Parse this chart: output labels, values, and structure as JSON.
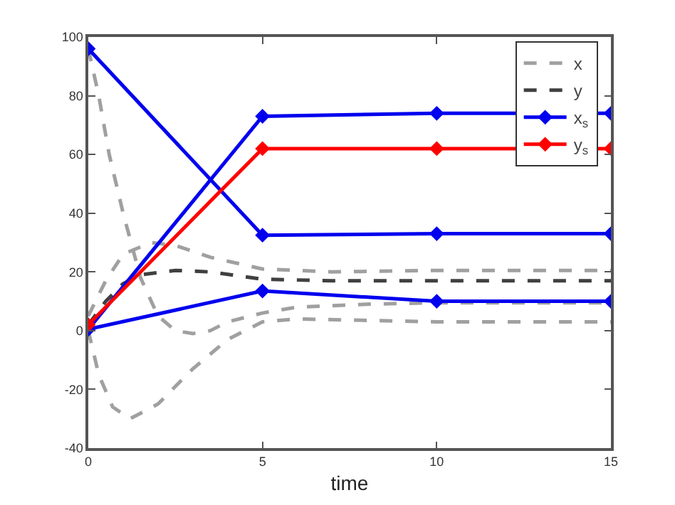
{
  "chart_data": {
    "type": "line",
    "xlabel": "time",
    "xlim": [
      0,
      15
    ],
    "xticks": [
      0,
      5,
      10,
      15
    ],
    "ylim": [
      -40,
      100
    ],
    "yticks": [
      -40,
      -20,
      0,
      20,
      40,
      60,
      80,
      100
    ],
    "grid": false,
    "legend": "top right",
    "series": [
      {
        "name": "x",
        "color": "#a0a0a0",
        "line_style": "dashed",
        "marker": "none",
        "x": [
          0,
          0.3,
          0.6,
          1,
          1.5,
          2,
          2.5,
          3,
          3.5,
          4,
          5,
          6,
          8,
          10,
          15
        ],
        "values": [
          96,
          80,
          60,
          40,
          18,
          5,
          0,
          -1,
          0,
          3,
          6,
          8,
          9,
          9.5,
          9.5
        ]
      },
      {
        "color": "#a0a0a0",
        "line_style": "dashed",
        "marker": "none",
        "x": [
          0,
          0.3,
          0.7,
          1.2,
          2,
          3,
          4,
          5,
          6,
          8,
          10,
          15
        ],
        "values": [
          0,
          -15,
          -26,
          -30,
          -25,
          -13,
          -3,
          3,
          4,
          3.5,
          3,
          3
        ]
      },
      {
        "color": "#a0a0a0",
        "line_style": "dashed",
        "marker": "none",
        "x": [
          0,
          0.5,
          1,
          1.8,
          2.5,
          3.5,
          5,
          7,
          10,
          15
        ],
        "values": [
          5,
          17,
          26,
          30,
          29,
          25,
          21,
          20,
          20.5,
          20.5
        ]
      },
      {
        "name": "y",
        "color": "#404040",
        "line_style": "dashed",
        "marker": "none",
        "x": [
          0,
          0.5,
          1,
          1.5,
          2.5,
          3.5,
          5,
          7,
          15
        ],
        "values": [
          2,
          10,
          16,
          19,
          20.5,
          20,
          17.5,
          17,
          17
        ]
      },
      {
        "name": "x$_{s}$",
        "color": "#0000ee",
        "line_style": "solid",
        "marker": "diamond",
        "x": [
          0,
          5,
          10,
          15
        ],
        "values": [
          96,
          32.5,
          33,
          33
        ]
      },
      {
        "color": "#0000ee",
        "line_style": "solid",
        "marker": "diamond",
        "x": [
          0,
          5,
          10,
          15
        ],
        "values": [
          0.5,
          73,
          74,
          74
        ]
      },
      {
        "color": "#0000ee",
        "line_style": "solid",
        "marker": "diamond",
        "x": [
          0,
          5,
          10,
          15
        ],
        "values": [
          0.5,
          13.5,
          10,
          10
        ]
      },
      {
        "name": "y$_{s}$",
        "color": "#ff0000",
        "line_style": "solid",
        "marker": "diamond",
        "x": [
          0,
          5,
          10,
          15
        ],
        "values": [
          2,
          62,
          62,
          62
        ]
      }
    ]
  }
}
